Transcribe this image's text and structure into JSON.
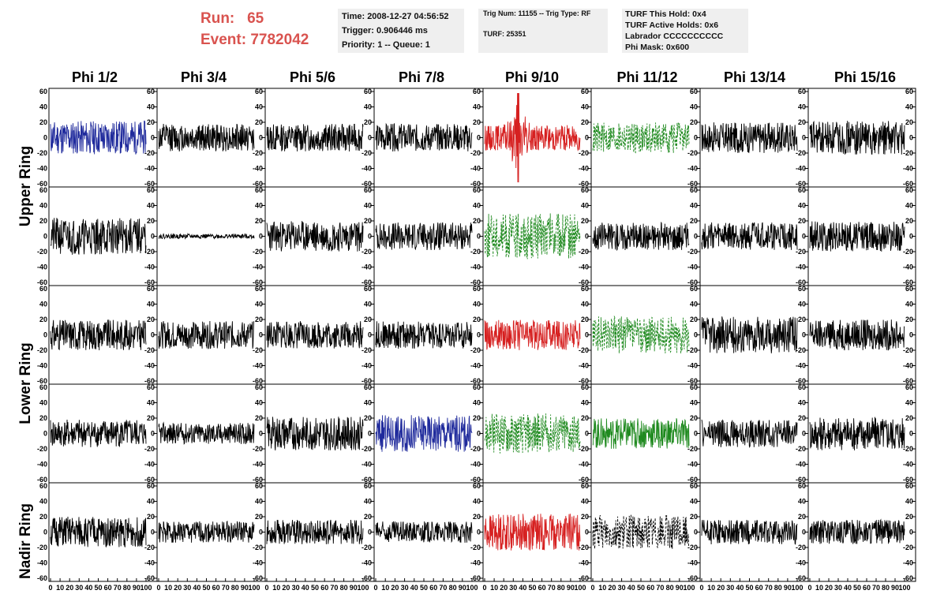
{
  "header": {
    "run_label": "Run:",
    "run_value": "65",
    "event_label": "Event:",
    "event_value": "7782042",
    "time_line": "Time: 2008-12-27 04:56:52",
    "trigger_line": "Trigger: 0.906446 ms",
    "priority_line": "Priority: 1 -- Queue: 1",
    "trig_line": "Trig Num: 11155 -- Trig Type: RF",
    "turf_line": "TURF: 25351",
    "turf_hold_line": "TURF This Hold: 0x4",
    "turf_active_line": "TURF Active Holds: 0x6",
    "labrador_line": "Labrador CCCCCCCCCC",
    "phimask_line": "Phi Mask: 0x600"
  },
  "chart_data": {
    "type": "line",
    "columns": [
      "Phi 1/2",
      "Phi 3/4",
      "Phi 5/6",
      "Phi 7/8",
      "Phi 9/10",
      "Phi 11/12",
      "Phi 13/14",
      "Phi 15/16"
    ],
    "row_groups": [
      "Upper Ring",
      "Lower Ring",
      "Nadir Ring"
    ],
    "ylim": [
      -60,
      60
    ],
    "xlim": [
      0,
      100
    ],
    "yticks_left": [
      "60",
      "40",
      "20",
      "0",
      "-20",
      "-40",
      "-60"
    ],
    "yticks_right": [
      "60",
      "40",
      "20",
      "0",
      "-20",
      "-40",
      "-60"
    ],
    "xticks": [
      "0",
      "10",
      "20",
      "30",
      "40",
      "50",
      "60",
      "70",
      "80",
      "90",
      "100"
    ],
    "colors": {
      "black": "#000000",
      "blue": "#1f2a9c",
      "red": "#d62020",
      "green": "#1f8a1f"
    },
    "panels": [
      [
        {
          "color": "blue",
          "amp": 22,
          "seed": 11
        },
        {
          "color": "black",
          "amp": 18,
          "seed": 12
        },
        {
          "color": "black",
          "amp": 18,
          "seed": 13
        },
        {
          "color": "black",
          "amp": 18,
          "seed": 14
        },
        {
          "color": "red",
          "amp": 30,
          "seed": 15,
          "spike": true
        },
        {
          "color": "green",
          "amp": 20,
          "seed": 16,
          "dashed": true
        },
        {
          "color": "black",
          "amp": 20,
          "seed": 17
        },
        {
          "color": "black",
          "amp": 22,
          "seed": 18
        }
      ],
      [
        {
          "color": "black",
          "amp": 24,
          "seed": 21
        },
        {
          "color": "black",
          "amp": 3,
          "seed": 22
        },
        {
          "color": "black",
          "amp": 20,
          "seed": 23
        },
        {
          "color": "black",
          "amp": 18,
          "seed": 24
        },
        {
          "color": "green",
          "amp": 30,
          "seed": 25,
          "dashed": true
        },
        {
          "color": "black",
          "amp": 18,
          "seed": 26
        },
        {
          "color": "black",
          "amp": 18,
          "seed": 27
        },
        {
          "color": "black",
          "amp": 20,
          "seed": 28
        }
      ],
      [
        {
          "color": "black",
          "amp": 20,
          "seed": 31
        },
        {
          "color": "black",
          "amp": 18,
          "seed": 32
        },
        {
          "color": "black",
          "amp": 18,
          "seed": 33
        },
        {
          "color": "black",
          "amp": 18,
          "seed": 34
        },
        {
          "color": "red",
          "amp": 20,
          "seed": 35
        },
        {
          "color": "green",
          "amp": 24,
          "seed": 36,
          "dashed": true
        },
        {
          "color": "black",
          "amp": 24,
          "seed": 37
        },
        {
          "color": "black",
          "amp": 20,
          "seed": 38
        }
      ],
      [
        {
          "color": "black",
          "amp": 18,
          "seed": 41
        },
        {
          "color": "black",
          "amp": 14,
          "seed": 42
        },
        {
          "color": "black",
          "amp": 22,
          "seed": 43
        },
        {
          "color": "blue",
          "amp": 24,
          "seed": 44
        },
        {
          "color": "green",
          "amp": 26,
          "seed": 45,
          "dashed": true
        },
        {
          "color": "green",
          "amp": 20,
          "seed": 46
        },
        {
          "color": "black",
          "amp": 18,
          "seed": 47
        },
        {
          "color": "black",
          "amp": 22,
          "seed": 48
        }
      ],
      [
        {
          "color": "black",
          "amp": 20,
          "seed": 51
        },
        {
          "color": "black",
          "amp": 14,
          "seed": 52
        },
        {
          "color": "black",
          "amp": 16,
          "seed": 53
        },
        {
          "color": "black",
          "amp": 14,
          "seed": 54
        },
        {
          "color": "red",
          "amp": 24,
          "seed": 55
        },
        {
          "color": "black",
          "amp": 22,
          "seed": 56,
          "dashed": true
        },
        {
          "color": "black",
          "amp": 16,
          "seed": 57
        },
        {
          "color": "black",
          "amp": 16,
          "seed": 58
        }
      ]
    ]
  }
}
